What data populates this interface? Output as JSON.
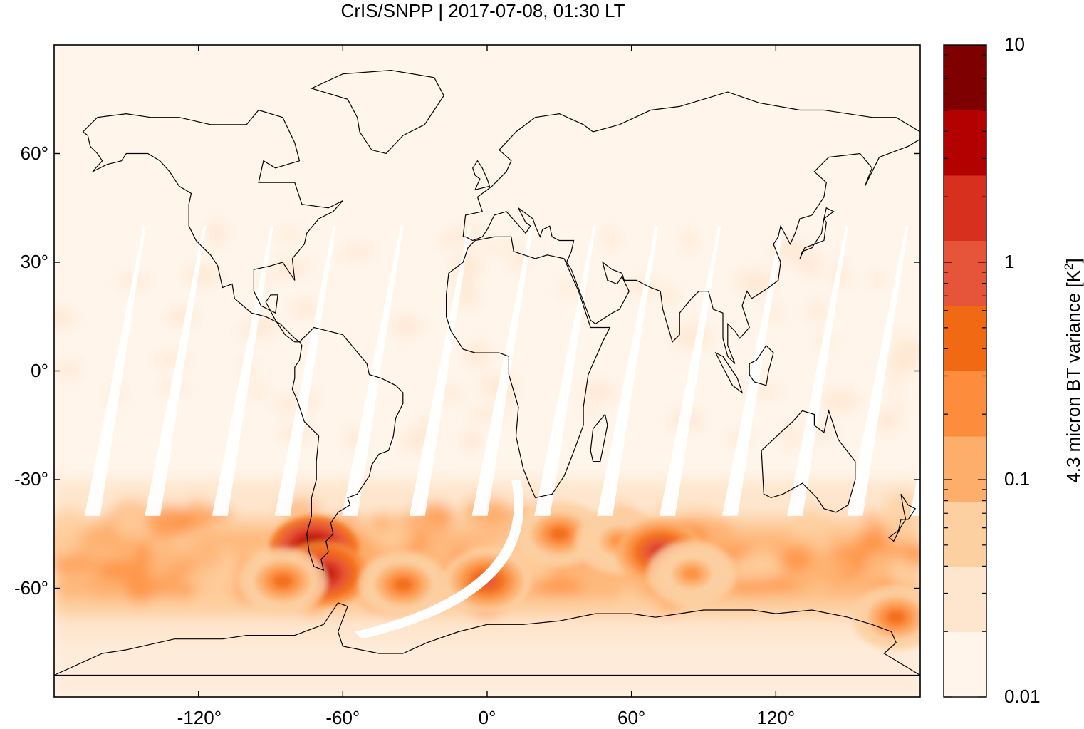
{
  "title": "CrIS/SNPP | 2017-07-08, 01:30 LT",
  "chart_data": {
    "type": "heatmap",
    "title": "CrIS/SNPP | 2017-07-08, 01:30 LT",
    "projection": "equirectangular",
    "xlim": [
      -180,
      180
    ],
    "ylim": [
      -90,
      90
    ],
    "x_ticks": [
      -120,
      -60,
      0,
      60,
      120
    ],
    "x_tick_labels": [
      "-120°",
      "-60°",
      "0°",
      "60°",
      "120°"
    ],
    "y_ticks": [
      60,
      30,
      0,
      -30,
      -60
    ],
    "y_tick_labels": [
      "60°",
      "30°",
      "0°",
      "-30°",
      "-60°"
    ],
    "colorbar": {
      "label_main": "4.3 micron BT variance [K",
      "label_sup": "2",
      "label_end": "]",
      "scale": "log",
      "range": [
        0.01,
        10
      ],
      "tick_values": [
        10,
        1,
        0.1,
        0.01
      ],
      "tick_labels": [
        "10",
        "1",
        "0.1",
        "0.01"
      ],
      "bins": [
        "#fff5eb",
        "#fee6ce",
        "#fdd0a2",
        "#fdae6b",
        "#fd8d3c",
        "#f16913",
        "#e6553a",
        "#d7301f",
        "#b30000",
        "#7f0000"
      ]
    },
    "features": {
      "coastlines": true,
      "orbit_swath_gaps": true,
      "high_variance_region": "Southern Hemisphere mid-latitudes 35°S-65°S",
      "hotspots": [
        {
          "lon": -72,
          "lat": -49,
          "level": 10
        },
        {
          "lon": -68,
          "lat": -56,
          "level": 8
        },
        {
          "lon": -85,
          "lat": -58,
          "level": 5
        },
        {
          "lon": -35,
          "lat": -59,
          "level": 5
        },
        {
          "lon": 0,
          "lat": -58,
          "level": 6
        },
        {
          "lon": 30,
          "lat": -45,
          "level": 5
        },
        {
          "lon": 55,
          "lat": -47,
          "level": 4
        },
        {
          "lon": 72,
          "lat": -50,
          "level": 7
        },
        {
          "lon": 85,
          "lat": -56,
          "level": 4
        },
        {
          "lon": 170,
          "lat": -68,
          "level": 5
        }
      ]
    }
  }
}
